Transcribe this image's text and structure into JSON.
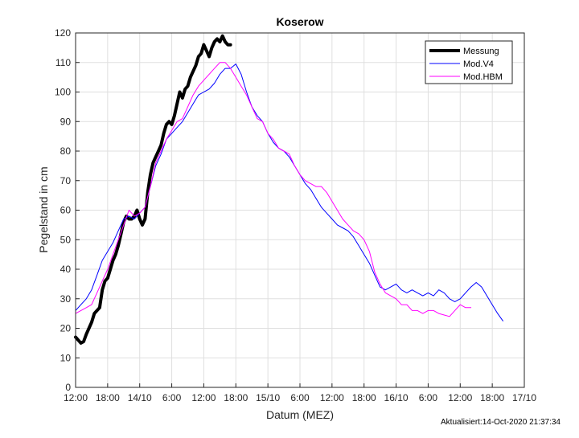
{
  "chart_data": {
    "type": "line",
    "title": "Koserow",
    "xlabel": "Datum (MEZ)",
    "ylabel": "Pegelstand in cm",
    "xlim": [
      0,
      84
    ],
    "x_unit": "hours after 13/10 12:00 MEZ",
    "ylim": [
      0,
      120
    ],
    "x_ticks": [
      {
        "x": 0,
        "label": "12:00"
      },
      {
        "x": 6,
        "label": "18:00"
      },
      {
        "x": 12,
        "label": "14/10"
      },
      {
        "x": 18,
        "label": "6:00"
      },
      {
        "x": 24,
        "label": "12:00"
      },
      {
        "x": 30,
        "label": "18:00"
      },
      {
        "x": 36,
        "label": "15/10"
      },
      {
        "x": 42,
        "label": "6:00"
      },
      {
        "x": 48,
        "label": "12:00"
      },
      {
        "x": 54,
        "label": "18:00"
      },
      {
        "x": 60,
        "label": "16/10"
      },
      {
        "x": 66,
        "label": "6:00"
      },
      {
        "x": 72,
        "label": "12:00"
      },
      {
        "x": 78,
        "label": "18:00"
      },
      {
        "x": 84,
        "label": "17/10"
      }
    ],
    "y_ticks": [
      0,
      10,
      20,
      30,
      40,
      50,
      60,
      70,
      80,
      90,
      100,
      110,
      120
    ],
    "grid": true,
    "legend_position": "top-right",
    "series": [
      {
        "name": "Messung",
        "color": "#000000",
        "points": [
          [
            0,
            17
          ],
          [
            0.5,
            16
          ],
          [
            1,
            15
          ],
          [
            1.5,
            15.5
          ],
          [
            2,
            18
          ],
          [
            2.5,
            20
          ],
          [
            3,
            22
          ],
          [
            3.5,
            25
          ],
          [
            4,
            26
          ],
          [
            4.5,
            27
          ],
          [
            5,
            33
          ],
          [
            5.5,
            36
          ],
          [
            6,
            37
          ],
          [
            6.5,
            40
          ],
          [
            7,
            43
          ],
          [
            7.5,
            45
          ],
          [
            8,
            48
          ],
          [
            8.5,
            52
          ],
          [
            9,
            56
          ],
          [
            9.5,
            58
          ],
          [
            10,
            57
          ],
          [
            10.5,
            57
          ],
          [
            11,
            58
          ],
          [
            11.5,
            60
          ],
          [
            12,
            57
          ],
          [
            12.5,
            55
          ],
          [
            13,
            57
          ],
          [
            13.5,
            66
          ],
          [
            14,
            72
          ],
          [
            14.5,
            76
          ],
          [
            15,
            78
          ],
          [
            15.5,
            80
          ],
          [
            16,
            82
          ],
          [
            16.5,
            86
          ],
          [
            17,
            89
          ],
          [
            17.5,
            90
          ],
          [
            18,
            89
          ],
          [
            18.5,
            92
          ],
          [
            19,
            96
          ],
          [
            19.5,
            100
          ],
          [
            20,
            98
          ],
          [
            20.5,
            101
          ],
          [
            21,
            102
          ],
          [
            21.5,
            105
          ],
          [
            22,
            107
          ],
          [
            22.5,
            109
          ],
          [
            23,
            112
          ],
          [
            23.5,
            113
          ],
          [
            24,
            116
          ],
          [
            24.5,
            114
          ],
          [
            25,
            112
          ],
          [
            25.5,
            115
          ],
          [
            26,
            117
          ],
          [
            26.5,
            118
          ],
          [
            27,
            117
          ],
          [
            27.5,
            119
          ],
          [
            28,
            117
          ],
          [
            28.5,
            116
          ],
          [
            29,
            116
          ]
        ]
      },
      {
        "name": "Mod.V4",
        "color": "#0000ff",
        "points": [
          [
            0,
            26
          ],
          [
            1,
            28
          ],
          [
            2,
            30
          ],
          [
            3,
            33
          ],
          [
            4,
            38
          ],
          [
            5,
            43
          ],
          [
            6,
            46
          ],
          [
            7,
            49
          ],
          [
            8,
            53
          ],
          [
            9,
            57
          ],
          [
            10,
            58
          ],
          [
            11,
            57
          ],
          [
            12,
            59
          ],
          [
            13,
            61
          ],
          [
            14,
            68
          ],
          [
            15,
            75
          ],
          [
            16,
            79
          ],
          [
            17,
            84
          ],
          [
            18,
            86
          ],
          [
            19,
            88
          ],
          [
            20,
            90
          ],
          [
            21,
            93
          ],
          [
            22,
            96
          ],
          [
            23,
            99
          ],
          [
            24,
            100
          ],
          [
            25,
            101
          ],
          [
            26,
            103
          ],
          [
            27,
            106
          ],
          [
            28,
            108
          ],
          [
            29,
            108
          ],
          [
            30,
            109.5
          ],
          [
            31,
            106
          ],
          [
            32,
            100
          ],
          [
            33,
            95
          ],
          [
            34,
            92
          ],
          [
            35,
            90
          ],
          [
            36,
            86
          ],
          [
            37,
            83
          ],
          [
            38,
            81
          ],
          [
            39,
            80
          ],
          [
            40,
            78
          ],
          [
            41,
            75
          ],
          [
            42,
            72
          ],
          [
            43,
            69
          ],
          [
            44,
            67
          ],
          [
            45,
            64
          ],
          [
            46,
            61
          ],
          [
            47,
            59
          ],
          [
            48,
            57
          ],
          [
            49,
            55
          ],
          [
            50,
            54
          ],
          [
            51,
            53
          ],
          [
            52,
            51
          ],
          [
            53,
            48
          ],
          [
            54,
            45
          ],
          [
            55,
            42
          ],
          [
            56,
            38
          ],
          [
            57,
            34
          ],
          [
            58,
            33
          ],
          [
            59,
            34
          ],
          [
            60,
            35
          ],
          [
            61,
            33
          ],
          [
            62,
            32
          ],
          [
            63,
            33
          ],
          [
            64,
            32
          ],
          [
            65,
            31
          ],
          [
            66,
            32
          ],
          [
            67,
            31
          ],
          [
            68,
            33
          ],
          [
            69,
            32
          ],
          [
            70,
            30
          ],
          [
            71,
            29
          ],
          [
            72,
            30
          ],
          [
            73,
            32
          ],
          [
            74,
            34
          ],
          [
            75,
            35.5
          ],
          [
            76,
            34
          ],
          [
            77,
            31
          ],
          [
            78,
            28
          ],
          [
            79,
            25
          ],
          [
            80,
            22.5
          ]
        ]
      },
      {
        "name": "Mod.HBM",
        "color": "#ff00ff",
        "points": [
          [
            0,
            25
          ],
          [
            1,
            26
          ],
          [
            2,
            27
          ],
          [
            3,
            28
          ],
          [
            4,
            32
          ],
          [
            5,
            36
          ],
          [
            6,
            40
          ],
          [
            7,
            45
          ],
          [
            8,
            50
          ],
          [
            9,
            55
          ],
          [
            10,
            60
          ],
          [
            11,
            58
          ],
          [
            12,
            59
          ],
          [
            13,
            61
          ],
          [
            14,
            68
          ],
          [
            15,
            76
          ],
          [
            16,
            80
          ],
          [
            17,
            84
          ],
          [
            18,
            87
          ],
          [
            19,
            90
          ],
          [
            20,
            91
          ],
          [
            21,
            95
          ],
          [
            22,
            99
          ],
          [
            23,
            102
          ],
          [
            24,
            104
          ],
          [
            25,
            106
          ],
          [
            26,
            108
          ],
          [
            27,
            110
          ],
          [
            28,
            110
          ],
          [
            29,
            108
          ],
          [
            30,
            105
          ],
          [
            31,
            102
          ],
          [
            32,
            99
          ],
          [
            33,
            95
          ],
          [
            34,
            91
          ],
          [
            35,
            90
          ],
          [
            36,
            86
          ],
          [
            37,
            84
          ],
          [
            38,
            81
          ],
          [
            39,
            80
          ],
          [
            40,
            79
          ],
          [
            41,
            75
          ],
          [
            42,
            72
          ],
          [
            43,
            70
          ],
          [
            44,
            69
          ],
          [
            45,
            68
          ],
          [
            46,
            68
          ],
          [
            47,
            66
          ],
          [
            48,
            63
          ],
          [
            49,
            60
          ],
          [
            50,
            57
          ],
          [
            51,
            55
          ],
          [
            52,
            53
          ],
          [
            53,
            52
          ],
          [
            54,
            50
          ],
          [
            55,
            46
          ],
          [
            56,
            39
          ],
          [
            57,
            35
          ],
          [
            58,
            32
          ],
          [
            59,
            31
          ],
          [
            60,
            30
          ],
          [
            61,
            28
          ],
          [
            62,
            28
          ],
          [
            63,
            26
          ],
          [
            64,
            26
          ],
          [
            65,
            25
          ],
          [
            66,
            26
          ],
          [
            67,
            26
          ],
          [
            68,
            25
          ],
          [
            69,
            24.5
          ],
          [
            70,
            24
          ],
          [
            71,
            26
          ],
          [
            72,
            28
          ],
          [
            73,
            27
          ],
          [
            74,
            27
          ]
        ]
      }
    ]
  },
  "footer": {
    "timestamp": "Aktualisiert:14-Oct-2020 21:37:34"
  }
}
